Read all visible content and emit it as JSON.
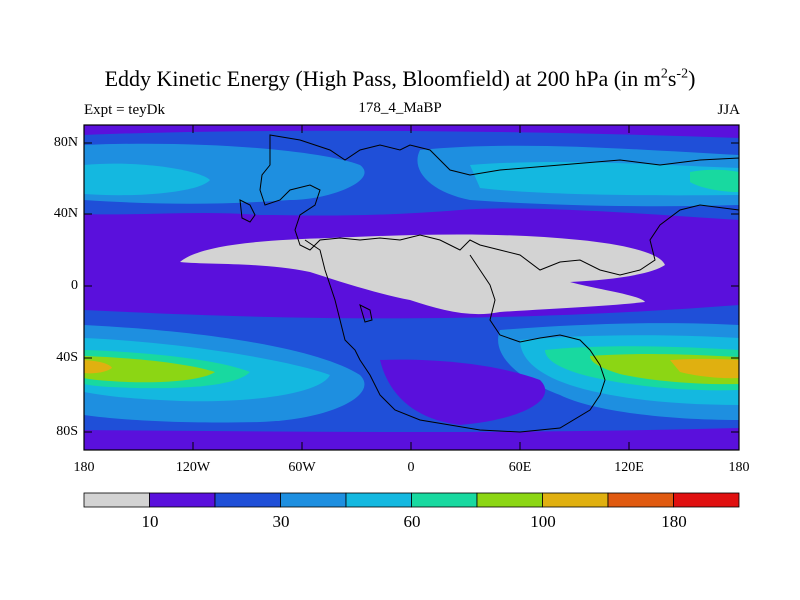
{
  "title": {
    "main": "Eddy Kinetic Energy (High Pass, Bloomfield) at 200 hPa (in m",
    "sup1": "2",
    "mid": "s",
    "sup2": "-2",
    "close": ")"
  },
  "subtitle_left": "Expt = teyDk",
  "subtitle_center": "178_4_MaBP",
  "subtitle_right": "JJA",
  "lat_labels": [
    "80N",
    "40N",
    "0",
    "40S",
    "80S"
  ],
  "lon_labels": [
    "180",
    "120W",
    "60W",
    "0",
    "60E",
    "120E",
    "180"
  ],
  "colorbar": {
    "colors": [
      "#d3d3d3",
      "#5a10dc",
      "#1f4fd8",
      "#1e8fe0",
      "#14b8e0",
      "#18d9a0",
      "#8cd614",
      "#e0b010",
      "#e05a10",
      "#e01010"
    ],
    "labels": [
      "10",
      "30",
      "60",
      "100",
      "180"
    ]
  }
}
